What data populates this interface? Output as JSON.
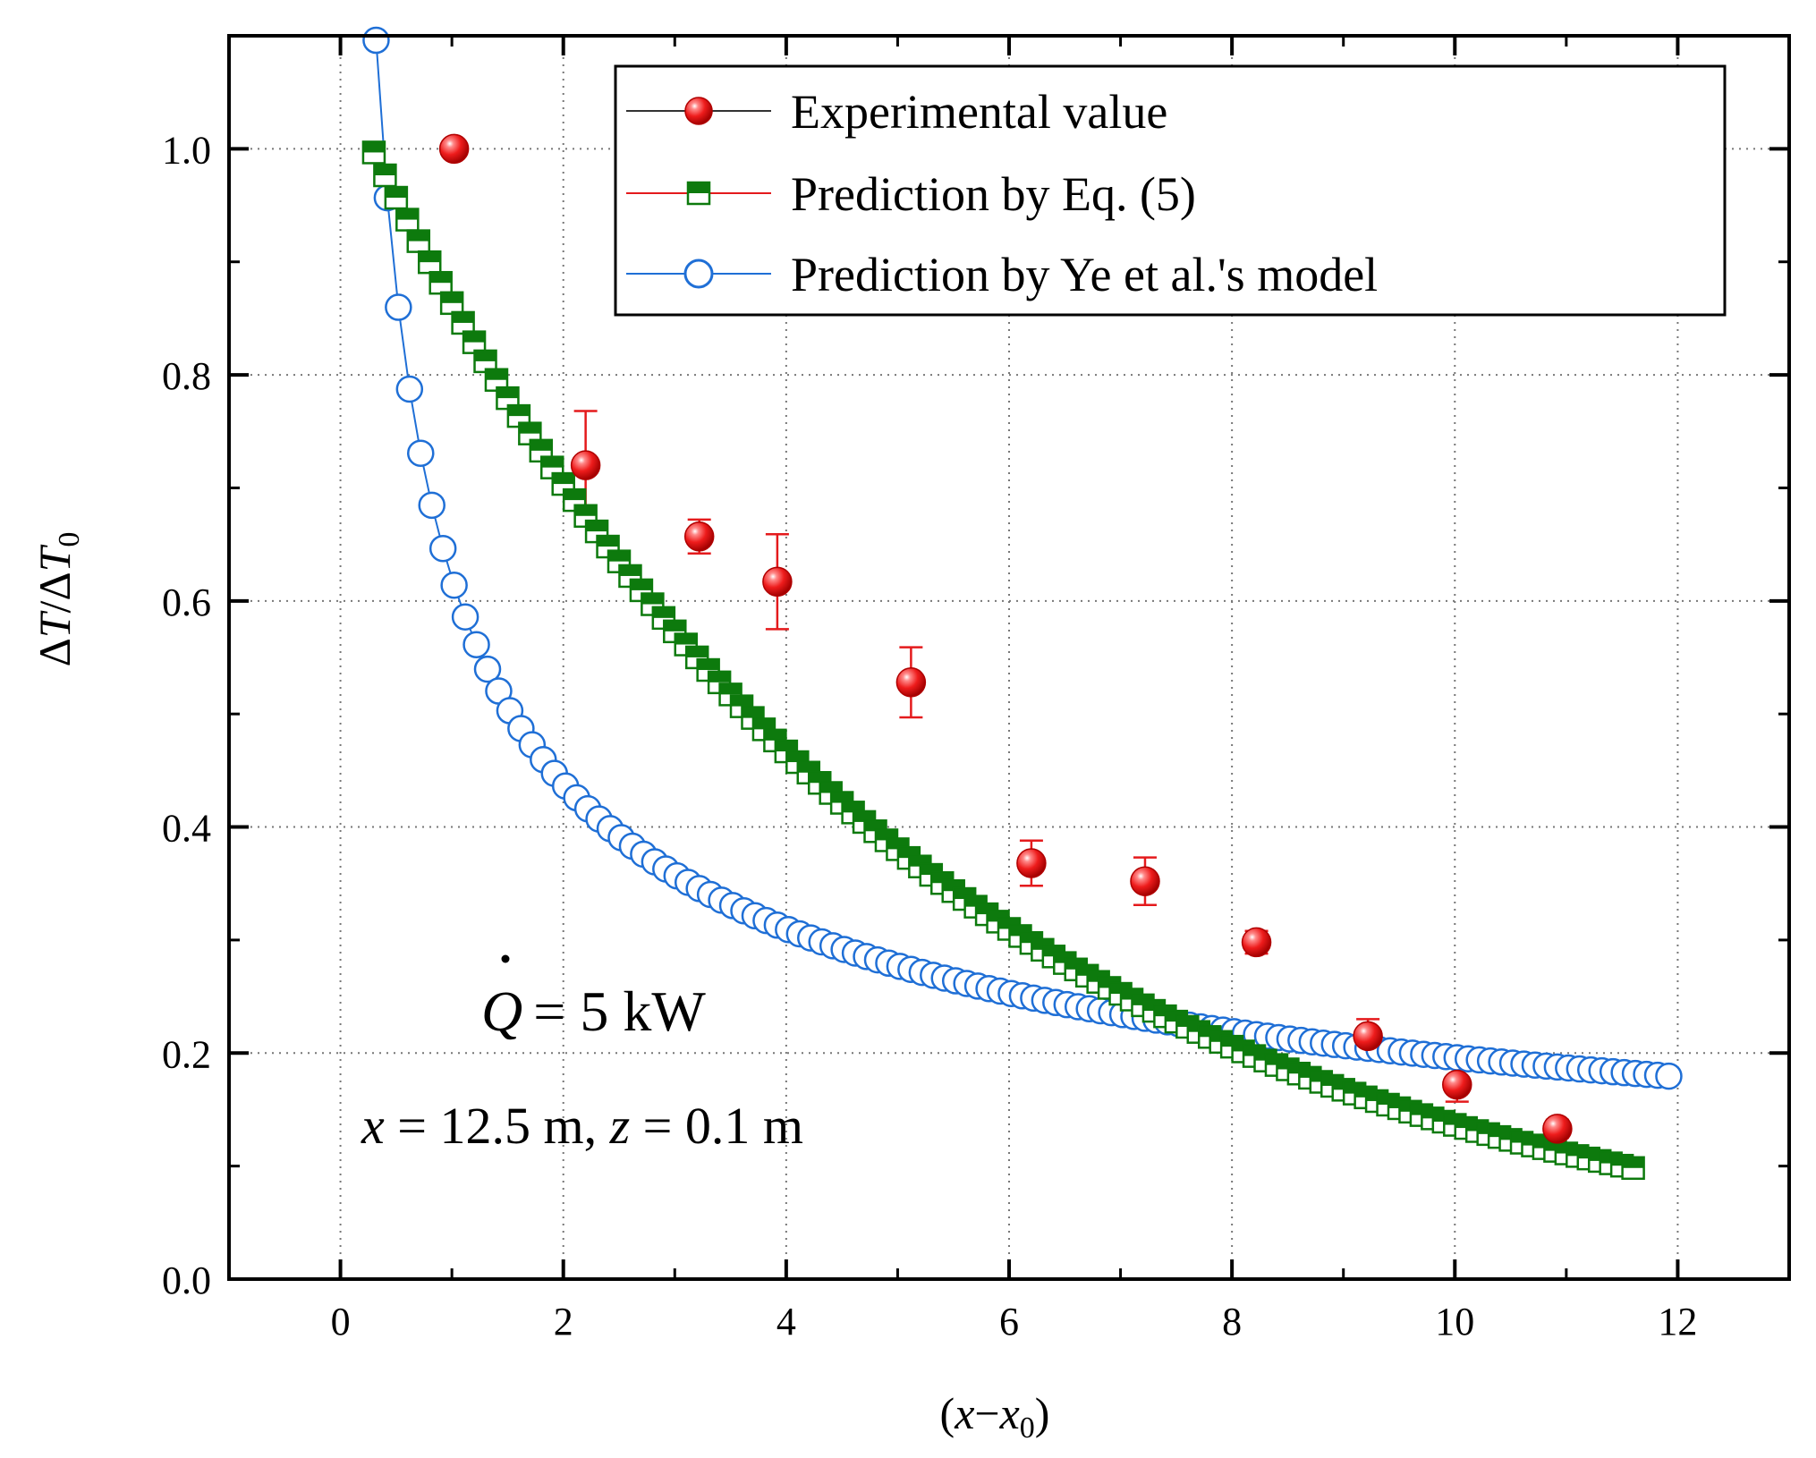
{
  "chart_data": {
    "type": "scatter",
    "xlabel_parts": [
      "(",
      "x",
      "−",
      "x",
      "0",
      ")"
    ],
    "ylabel_parts": [
      "Δ",
      "T",
      "/Δ",
      "T",
      "0"
    ],
    "xlim": [
      -1,
      13
    ],
    "ylim": [
      0,
      1.1
    ],
    "x_ticks": [
      0,
      2,
      4,
      6,
      8,
      10,
      12
    ],
    "x_tick_labels": [
      "0",
      "2",
      "4",
      "6",
      "8",
      "10",
      "12"
    ],
    "y_ticks": [
      0,
      0.2,
      0.4,
      0.6,
      0.8,
      1.0
    ],
    "y_tick_labels": [
      "0.0",
      "0.2",
      "0.4",
      "0.6",
      "0.8",
      "1.0"
    ],
    "grid": true,
    "legend_position": "top-right",
    "colors": {
      "experimental": "#ee1c1c",
      "eq5": "#0d7a0d",
      "ye": "#1f6fd6",
      "errorbar": "#e41a1c"
    },
    "annotations": {
      "q_label": [
        "Q",
        "= 5 kW"
      ],
      "cond_label": [
        "x",
        " = 12.5 m, ",
        "z",
        " = 0.1 m"
      ]
    },
    "series": [
      {
        "name": "Experimental value",
        "marker": "sphere",
        "x": [
          1.02,
          2.2,
          3.22,
          3.92,
          5.12,
          6.2,
          7.22,
          8.22,
          9.22,
          10.02,
          10.92
        ],
        "y": [
          1.0,
          0.72,
          0.657,
          0.617,
          0.528,
          0.368,
          0.352,
          0.298,
          0.215,
          0.172,
          0.133
        ],
        "err": [
          0,
          0.048,
          0.015,
          0.042,
          0.031,
          0.02,
          0.021,
          0.01,
          0.015,
          0.015,
          0.008
        ]
      },
      {
        "name": "Prediction by Eq. (5)",
        "marker": "half-filled-square",
        "model": "exponential",
        "a": 1.06,
        "b": 0.205,
        "x_start": 0.3,
        "x_end": 11.65,
        "step": 0.1
      },
      {
        "name": "Prediction by Ye et al.'s model",
        "marker": "open-circle",
        "model": "power",
        "a": 0.62,
        "b": 0.5,
        "x_start": 0.32,
        "x_end": 12.0,
        "step": 0.1
      }
    ]
  }
}
